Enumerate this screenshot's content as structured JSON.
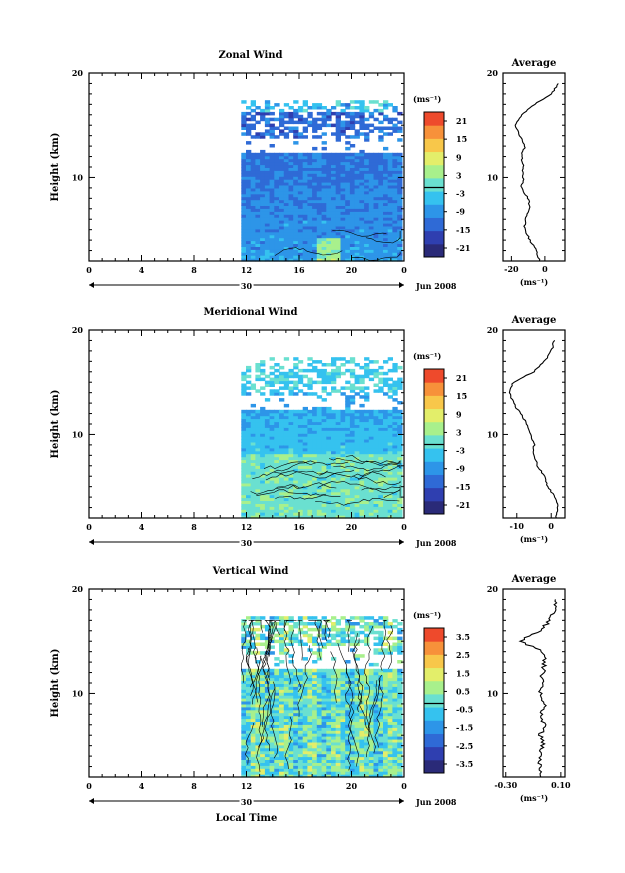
{
  "chart_data": [
    {
      "type": "heatmap",
      "title": "Zonal Wind",
      "ylabel": "Height (km)",
      "xticks": [
        "0",
        "4",
        "8",
        "12",
        "16",
        "20",
        "0"
      ],
      "yticks": [
        "20",
        "10"
      ],
      "date_label": "30",
      "month_label": "Jun 2008",
      "xlim": [
        0,
        24
      ],
      "ylim": [
        2,
        20
      ],
      "colorbar": {
        "unit": "(ms⁻¹)",
        "ticks": [
          "21",
          "15",
          "9",
          "3",
          "-3",
          "-9",
          "-15",
          "-21"
        ],
        "range": [
          -24,
          24
        ]
      },
      "profile": {
        "title": "Average",
        "xlabel": "(ms⁻¹)",
        "xticks": [
          "-20",
          "0"
        ],
        "yticks": [
          "20",
          "10"
        ],
        "xlim": [
          -25,
          12
        ],
        "heights": [
          2,
          3,
          4,
          5,
          6,
          7,
          8,
          9,
          10,
          11,
          12,
          13,
          14,
          15,
          16,
          17,
          18,
          19
        ],
        "values": [
          -3,
          -5,
          -9,
          -12,
          -12,
          -9,
          -10,
          -14,
          -13,
          -13,
          -14,
          -12,
          -15,
          -18,
          -14,
          -6,
          4,
          8
        ]
      }
    },
    {
      "type": "heatmap",
      "title": "Meridional Wind",
      "ylabel": "Height (km)",
      "xticks": [
        "0",
        "4",
        "8",
        "12",
        "16",
        "20",
        "0"
      ],
      "yticks": [
        "20",
        "10"
      ],
      "date_label": "30",
      "month_label": "Jun 2008",
      "xlim": [
        0,
        24
      ],
      "ylim": [
        2,
        20
      ],
      "colorbar": {
        "unit": "(ms⁻¹)",
        "ticks": [
          "21",
          "15",
          "9",
          "3",
          "-3",
          "-9",
          "-15",
          "-21"
        ],
        "range": [
          -24,
          24
        ]
      },
      "profile": {
        "title": "Average",
        "xlabel": "(ms⁻¹)",
        "xticks": [
          "-10",
          "0"
        ],
        "yticks": [
          "20",
          "10"
        ],
        "xlim": [
          -14,
          4
        ],
        "heights": [
          2,
          3,
          4,
          5,
          6,
          7,
          8,
          9,
          10,
          11,
          12,
          13,
          14,
          15,
          16,
          17,
          18,
          19
        ],
        "values": [
          1.5,
          2,
          1,
          -1,
          -2,
          -4,
          -5,
          -5,
          -6,
          -7,
          -9,
          -11,
          -12,
          -11,
          -5,
          -2,
          0,
          1
        ]
      }
    },
    {
      "type": "heatmap",
      "title": "Vertical Wind",
      "ylabel": "Height (km)",
      "xlabel": "Local Time",
      "xticks": [
        "0",
        "4",
        "8",
        "12",
        "16",
        "20",
        "0"
      ],
      "yticks": [
        "20",
        "10"
      ],
      "date_label": "30",
      "month_label": "Jun 2008",
      "xlim": [
        0,
        24
      ],
      "ylim": [
        2,
        20
      ],
      "colorbar": {
        "unit": "(ms⁻¹)",
        "ticks": [
          "3.5",
          "2.5",
          "1.5",
          "0.5",
          "-0.5",
          "-1.5",
          "-2.5",
          "-3.5"
        ],
        "range": [
          -4,
          4
        ]
      },
      "profile": {
        "title": "Average",
        "xlabel": "(ms⁻¹)",
        "xticks": [
          "-0.30",
          "0.10"
        ],
        "yticks": [
          "20",
          "10"
        ],
        "xlim": [
          -0.32,
          0.13
        ],
        "heights": [
          2,
          3,
          4,
          5,
          6,
          7,
          8,
          9,
          10,
          11,
          12,
          13,
          14,
          15,
          16,
          17,
          18,
          19
        ],
        "values": [
          -0.04,
          -0.05,
          -0.06,
          -0.03,
          -0.05,
          -0.02,
          -0.04,
          -0.02,
          -0.05,
          -0.04,
          -0.03,
          -0.02,
          -0.03,
          -0.2,
          -0.05,
          0.02,
          0.05,
          0.06
        ]
      }
    }
  ]
}
